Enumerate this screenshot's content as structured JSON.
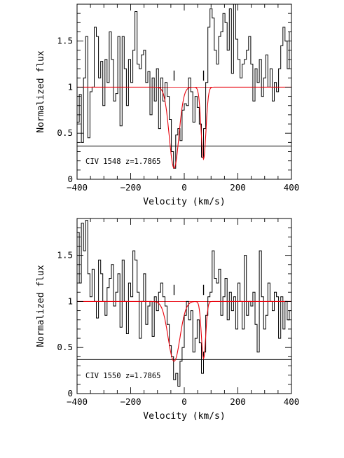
{
  "chart_data": [
    {
      "type": "line",
      "panel_label": "CIV  1548  z=1.7865",
      "xlabel": "Velocity  (km/s)",
      "ylabel": "Normalized flux",
      "xlim": [
        -400,
        400
      ],
      "ylim": [
        0,
        1.9
      ],
      "xticks": [
        -400,
        -200,
        0,
        200,
        400
      ],
      "xtick_labels": [
        "−400",
        "−200",
        "0",
        "200",
        "400"
      ],
      "yticks": [
        0,
        0.5,
        1,
        1.5
      ],
      "ytick_labels": [
        "0",
        "0.5",
        "1",
        "1.5"
      ],
      "reference_levels": [
        1.0,
        0.36
      ],
      "component_velocities": [
        -38,
        72
      ],
      "observed_color": "#000000",
      "fit_color": "#e8000b",
      "observed": {
        "x": [
          -400,
          -392,
          -384,
          -376,
          -368,
          -360,
          -352,
          -344,
          -336,
          -328,
          -320,
          -312,
          -304,
          -296,
          -288,
          -280,
          -272,
          -264,
          -256,
          -248,
          -240,
          -232,
          -224,
          -216,
          -208,
          -200,
          -192,
          -184,
          -176,
          -168,
          -160,
          -152,
          -144,
          -136,
          -128,
          -120,
          -112,
          -104,
          -96,
          -88,
          -80,
          -72,
          -64,
          -56,
          -48,
          -40,
          -32,
          -24,
          -16,
          -8,
          0,
          8,
          16,
          24,
          32,
          40,
          48,
          56,
          64,
          72,
          80,
          88,
          96,
          104,
          112,
          120,
          128,
          136,
          144,
          152,
          160,
          168,
          176,
          184,
          192,
          200,
          208,
          216,
          224,
          232,
          240,
          248,
          256,
          264,
          272,
          280,
          288,
          296,
          304,
          312,
          320,
          328,
          336,
          344,
          352,
          360,
          368,
          376,
          384,
          392
        ],
        "y": [
          0.62,
          0.92,
          0.4,
          1.1,
          1.55,
          0.45,
          0.95,
          1.0,
          1.65,
          1.55,
          1.1,
          1.28,
          0.8,
          1.3,
          1.05,
          1.6,
          1.3,
          0.85,
          0.93,
          1.55,
          0.58,
          1.55,
          1.2,
          0.8,
          1.3,
          1.05,
          1.4,
          1.82,
          1.25,
          1.2,
          1.35,
          1.4,
          1.05,
          1.17,
          0.7,
          1.1,
          0.85,
          1.2,
          0.55,
          1.1,
          0.85,
          1.05,
          0.9,
          0.65,
          0.3,
          0.12,
          0.48,
          0.55,
          0.42,
          0.75,
          0.82,
          0.8,
          1.1,
          0.95,
          0.62,
          0.9,
          0.78,
          0.6,
          0.24,
          0.55,
          1.05,
          1.65,
          1.85,
          1.75,
          1.4,
          1.25,
          1.55,
          1.6,
          1.8,
          1.7,
          1.4,
          1.85,
          1.15,
          1.9,
          1.52,
          1.3,
          1.1,
          1.25,
          1.3,
          1.4,
          1.55,
          1.25,
          0.85,
          1.2,
          1.05,
          1.3,
          0.9,
          1.1,
          1.35,
          1.0,
          1.2,
          0.85,
          1.05,
          0.95,
          1.2,
          1.45,
          1.65,
          1.5,
          1.2,
          1.6
        ]
      },
      "fit": {
        "depths": [
          0.88,
          0.78
        ],
        "sigmas": [
          18,
          9
        ]
      }
    },
    {
      "type": "line",
      "panel_label": "CIV  1550  z=1.7865",
      "xlabel": "Velocity  (km/s)",
      "ylabel": "Normalized flux",
      "xlim": [
        -400,
        400
      ],
      "ylim": [
        0,
        1.9
      ],
      "xticks": [
        -400,
        -200,
        0,
        200,
        400
      ],
      "xtick_labels": [
        "−400",
        "−200",
        "0",
        "200",
        "400"
      ],
      "yticks": [
        0,
        0.5,
        1,
        1.5
      ],
      "ytick_labels": [
        "0",
        "0.5",
        "1",
        "1.5"
      ],
      "reference_levels": [
        1.0,
        0.37
      ],
      "component_velocities": [
        -38,
        72
      ],
      "observed_color": "#000000",
      "fit_color": "#e8000b",
      "observed": {
        "x": [
          -400,
          -392,
          -384,
          -376,
          -368,
          -360,
          -352,
          -344,
          -336,
          -328,
          -320,
          -312,
          -304,
          -296,
          -288,
          -280,
          -272,
          -264,
          -256,
          -248,
          -240,
          -232,
          -224,
          -216,
          -208,
          -200,
          -192,
          -184,
          -176,
          -168,
          -160,
          -152,
          -144,
          -136,
          -128,
          -120,
          -112,
          -104,
          -96,
          -88,
          -80,
          -72,
          -64,
          -56,
          -48,
          -40,
          -32,
          -24,
          -16,
          -8,
          0,
          8,
          16,
          24,
          32,
          40,
          48,
          56,
          64,
          72,
          80,
          88,
          96,
          104,
          112,
          120,
          128,
          136,
          144,
          152,
          160,
          168,
          176,
          184,
          192,
          200,
          208,
          216,
          224,
          232,
          240,
          248,
          256,
          264,
          272,
          280,
          288,
          296,
          304,
          312,
          320,
          328,
          336,
          344,
          352,
          360,
          368,
          376,
          384,
          392
        ],
        "y": [
          1.75,
          1.2,
          1.85,
          1.55,
          1.88,
          1.3,
          1.05,
          1.35,
          1.0,
          0.82,
          1.45,
          1.3,
          1.0,
          0.85,
          1.15,
          1.25,
          1.4,
          0.95,
          1.1,
          1.3,
          0.72,
          1.45,
          1.0,
          0.65,
          1.2,
          1.05,
          1.55,
          1.45,
          1.1,
          0.6,
          1.0,
          1.3,
          0.75,
          0.95,
          1.0,
          0.62,
          1.05,
          0.9,
          1.1,
          1.2,
          1.05,
          0.95,
          0.75,
          0.52,
          0.4,
          0.15,
          0.22,
          0.08,
          0.35,
          0.5,
          0.85,
          1.0,
          0.8,
          0.9,
          0.45,
          0.6,
          0.8,
          0.55,
          0.22,
          0.45,
          0.85,
          1.05,
          1.1,
          1.55,
          1.25,
          1.2,
          1.35,
          0.85,
          1.05,
          1.25,
          0.8,
          1.1,
          0.9,
          1.05,
          0.7,
          1.2,
          1.0,
          0.7,
          1.5,
          0.85,
          1.0,
          0.95,
          1.1,
          0.75,
          0.45,
          1.55,
          1.05,
          0.7,
          0.85,
          1.2,
          1.0,
          0.9,
          1.1,
          1.05,
          0.6,
          1.05,
          0.7,
          1.0,
          0.8,
          0.9
        ]
      },
      "fit": {
        "depths": [
          0.65,
          0.62
        ],
        "sigmas": [
          22,
          8
        ]
      }
    }
  ]
}
